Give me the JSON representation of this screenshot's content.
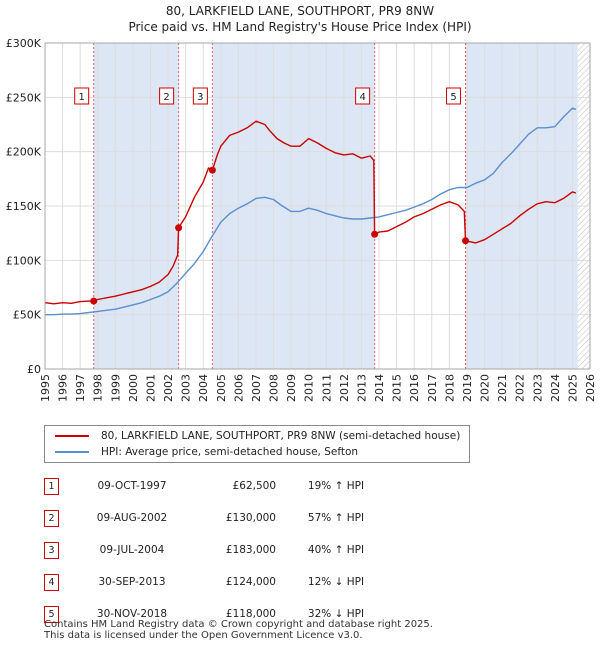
{
  "chart_data": {
    "type": "line",
    "title": "80, LARKFIELD LANE, SOUTHPORT, PR9 8NW",
    "subtitle": "Price paid vs. HM Land Registry's House Price Index (HPI)",
    "xlim": [
      1995,
      2026
    ],
    "ylim": [
      0,
      300000
    ],
    "xticks": [
      "1995",
      "1996",
      "1997",
      "1998",
      "1999",
      "2000",
      "2001",
      "2002",
      "2003",
      "2004",
      "2005",
      "2006",
      "2007",
      "2008",
      "2009",
      "2010",
      "2011",
      "2012",
      "2013",
      "2014",
      "2015",
      "2016",
      "2017",
      "2018",
      "2019",
      "2020",
      "2021",
      "2022",
      "2023",
      "2024",
      "2025",
      "2026"
    ],
    "yticks": [
      {
        "value": 0,
        "label": "£0"
      },
      {
        "value": 50000,
        "label": "£50K"
      },
      {
        "value": 100000,
        "label": "£100K"
      },
      {
        "value": 150000,
        "label": "£150K"
      },
      {
        "value": 200000,
        "label": "£200K"
      },
      {
        "value": 250000,
        "label": "£250K"
      },
      {
        "value": 300000,
        "label": "£300K"
      }
    ],
    "grid": true,
    "colors": {
      "price": "#cc0000",
      "hpi": "#5b8fd0",
      "shade": "#dde6f5",
      "grid": "#dddddd",
      "bg": "#ffffff"
    },
    "shaded_intervals": [
      [
        1997.77,
        2002.6
      ],
      [
        2004.52,
        2013.75
      ],
      [
        2018.92,
        2025.3
      ]
    ],
    "hatched_from": 2025.3,
    "series": [
      {
        "name": "80, LARKFIELD LANE, SOUTHPORT, PR9 8NW (semi-detached house)",
        "color": "#cc0000",
        "x": [
          1995.0,
          1995.5,
          1996.0,
          1996.5,
          1997.0,
          1997.5,
          1997.77,
          1998.0,
          1998.5,
          1999.0,
          1999.5,
          2000.0,
          2000.5,
          2001.0,
          2001.5,
          2002.0,
          2002.3,
          2002.55,
          2002.6,
          2003.0,
          2003.5,
          2004.0,
          2004.3,
          2004.52,
          2004.8,
          2005.0,
          2005.5,
          2006.0,
          2006.5,
          2007.0,
          2007.5,
          2007.8,
          2008.2,
          2008.6,
          2009.0,
          2009.5,
          2010.0,
          2010.5,
          2011.0,
          2011.5,
          2012.0,
          2012.5,
          2013.0,
          2013.5,
          2013.7,
          2013.75,
          2014.0,
          2014.5,
          2015.0,
          2015.5,
          2016.0,
          2016.5,
          2017.0,
          2017.5,
          2018.0,
          2018.5,
          2018.85,
          2018.92,
          2019.5,
          2020.0,
          2020.5,
          2021.0,
          2021.5,
          2022.0,
          2022.5,
          2023.0,
          2023.5,
          2024.0,
          2024.5,
          2025.0,
          2025.2
        ],
        "values": [
          61000,
          60000,
          61000,
          60500,
          62000,
          62500,
          62500,
          64000,
          65500,
          67000,
          69000,
          71000,
          73000,
          76000,
          80000,
          87000,
          95000,
          105000,
          130000,
          140000,
          158000,
          172000,
          185000,
          183000,
          197000,
          205000,
          215000,
          218000,
          222000,
          228000,
          225000,
          219000,
          212000,
          208000,
          205000,
          205000,
          212000,
          208000,
          203000,
          199000,
          197000,
          198000,
          194000,
          196000,
          192000,
          124000,
          126000,
          127000,
          131000,
          135000,
          140000,
          143000,
          147000,
          151000,
          154000,
          151000,
          145000,
          118000,
          116000,
          119000,
          124000,
          129000,
          134000,
          141000,
          147000,
          152000,
          154000,
          153000,
          157000,
          163000,
          162000
        ]
      },
      {
        "name": "HPI: Average price, semi-detached house, Sefton",
        "color": "#5b8fd0",
        "x": [
          1995.0,
          1995.5,
          1996.0,
          1996.5,
          1997.0,
          1997.5,
          1998.0,
          1998.5,
          1999.0,
          1999.5,
          2000.0,
          2000.5,
          2001.0,
          2001.5,
          2002.0,
          2002.5,
          2003.0,
          2003.5,
          2004.0,
          2004.5,
          2005.0,
          2005.5,
          2006.0,
          2006.5,
          2007.0,
          2007.5,
          2008.0,
          2008.5,
          2009.0,
          2009.5,
          2010.0,
          2010.5,
          2011.0,
          2011.5,
          2012.0,
          2012.5,
          2013.0,
          2013.5,
          2014.0,
          2014.5,
          2015.0,
          2015.5,
          2016.0,
          2016.5,
          2017.0,
          2017.5,
          2018.0,
          2018.5,
          2019.0,
          2019.5,
          2020.0,
          2020.5,
          2021.0,
          2021.5,
          2022.0,
          2022.5,
          2023.0,
          2023.5,
          2024.0,
          2024.5,
          2025.0,
          2025.2
        ],
        "values": [
          50000,
          50000,
          50500,
          50500,
          51000,
          52000,
          53000,
          54000,
          55000,
          57000,
          59000,
          61000,
          64000,
          67000,
          71000,
          79000,
          88000,
          97000,
          108000,
          122000,
          135000,
          143000,
          148000,
          152000,
          157000,
          158000,
          156000,
          150000,
          145000,
          145000,
          148000,
          146000,
          143000,
          141000,
          139000,
          138000,
          138000,
          139000,
          140000,
          142000,
          144000,
          146000,
          149000,
          152000,
          156000,
          161000,
          165000,
          167000,
          167000,
          171000,
          174000,
          180000,
          190000,
          198000,
          207000,
          216000,
          222000,
          222000,
          223000,
          232000,
          240000,
          239000
        ]
      }
    ],
    "markers": [
      {
        "label": "1",
        "x": 1997.77,
        "value": 62500
      },
      {
        "label": "2",
        "x": 2002.6,
        "value": 130000
      },
      {
        "label": "3",
        "x": 2004.52,
        "value": 183000
      },
      {
        "label": "4",
        "x": 2013.75,
        "value": 124000
      },
      {
        "label": "5",
        "x": 2018.92,
        "value": 118000
      }
    ]
  },
  "sales": [
    {
      "num": "1",
      "date": "09-OCT-1997",
      "price": "£62,500",
      "hpi": "19% ↑ HPI"
    },
    {
      "num": "2",
      "date": "09-AUG-2002",
      "price": "£130,000",
      "hpi": "57% ↑ HPI"
    },
    {
      "num": "3",
      "date": "09-JUL-2004",
      "price": "£183,000",
      "hpi": "40% ↑ HPI"
    },
    {
      "num": "4",
      "date": "30-SEP-2013",
      "price": "£124,000",
      "hpi": "12% ↓ HPI"
    },
    {
      "num": "5",
      "date": "30-NOV-2018",
      "price": "£118,000",
      "hpi": "32% ↓ HPI"
    }
  ],
  "footer": {
    "line1": "Contains HM Land Registry data © Crown copyright and database right 2025.",
    "line2": "This data is licensed under the Open Government Licence v3.0."
  }
}
